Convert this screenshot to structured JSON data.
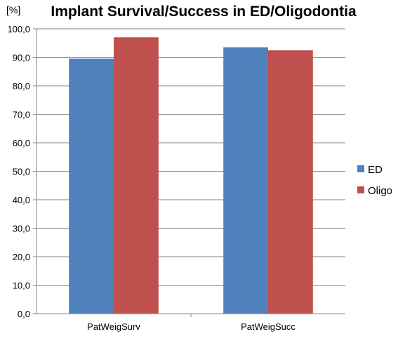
{
  "chart_data": {
    "type": "bar",
    "title": "Implant Survival/Success in ED/Oligodontia",
    "ylabel": "[%]",
    "xlabel": "",
    "categories": [
      "PatWeigSurv",
      "PatWeigSucc"
    ],
    "series": [
      {
        "name": "ED",
        "color": "#4F81BD",
        "values": [
          89.5,
          93.5
        ]
      },
      {
        "name": "Oligo",
        "color": "#C0504D",
        "values": [
          97.0,
          92.5
        ]
      }
    ],
    "ylim": [
      0,
      100
    ],
    "yticks": [
      "0,0",
      "10,0",
      "20,0",
      "30,0",
      "40,0",
      "50,0",
      "60,0",
      "70,0",
      "80,0",
      "90,0",
      "100,0"
    ],
    "grid": true,
    "legend_position": "right"
  }
}
